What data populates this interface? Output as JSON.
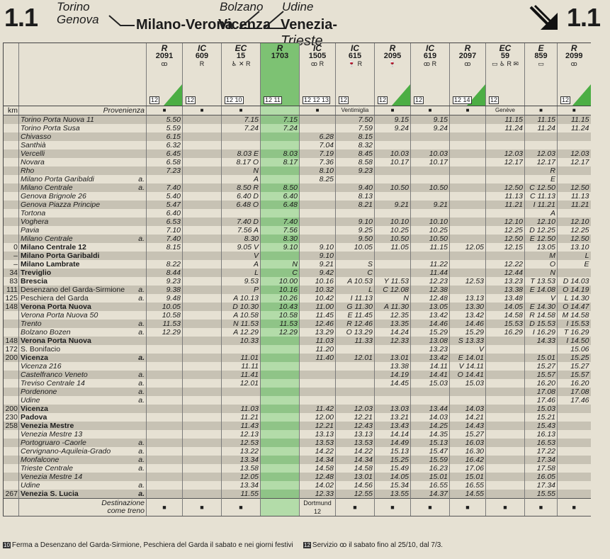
{
  "header": {
    "badge_left": "1.1",
    "badge_right": "1.1",
    "route_torino": "Torino",
    "route_genova": "Genova",
    "route_milano_verona": "Milano-Verona",
    "route_bolzano": "Bolzano",
    "route_vicenza": "Vicenza",
    "route_udine": "Udine",
    "route_venezia": "Venezia-",
    "route_trieste": "Trieste"
  },
  "columns": [
    {
      "cat": "R",
      "num": "2091",
      "svc": "ꝏ",
      "note": "12",
      "green": true
    },
    {
      "cat": "IC",
      "num": "609",
      "svc": "R",
      "note": "12",
      "green": false
    },
    {
      "cat": "EC",
      "num": "15",
      "svc": "♿ ✕ R",
      "note": "12 10",
      "green": false
    },
    {
      "cat": "R",
      "num": "1703",
      "svc": "",
      "note": "12 11",
      "green": true,
      "full": true
    },
    {
      "cat": "IC",
      "num": "1505",
      "svc": "ꝏ R",
      "note": "12 12 13",
      "green": false
    },
    {
      "cat": "IC",
      "num": "615",
      "svc": "🍷 R",
      "note": "12",
      "green": false
    },
    {
      "cat": "R",
      "num": "2095",
      "svc": "🍷",
      "note": "12",
      "green": true
    },
    {
      "cat": "IC",
      "num": "619",
      "svc": "ꝏ R",
      "note": "12",
      "green": false
    },
    {
      "cat": "R",
      "num": "2097",
      "svc": "ꝏ",
      "note": "12 14",
      "green": true
    },
    {
      "cat": "EC",
      "num": "59",
      "svc": "▭ ♿ R ✉",
      "note": "12",
      "green": false
    },
    {
      "cat": "E",
      "num": "859",
      "svc": "▭",
      "note": "",
      "green": false
    },
    {
      "cat": "R",
      "num": "2099",
      "svc": "ꝏ",
      "note": "12",
      "green": true
    }
  ],
  "provenienza": {
    "label": "Provenienza",
    "km": "km",
    "cells": [
      "■",
      "■",
      "■",
      "",
      "■",
      "Ventimiglia",
      "■",
      "■",
      "■",
      "Genève",
      "■",
      "■"
    ]
  },
  "rows": [
    {
      "km": "",
      "st": "Torino Porta Nuova 11",
      "a": "",
      "g": "shade",
      "it": true,
      "c": [
        "5.50",
        "",
        "7.15",
        "7.15",
        "",
        "7.50",
        "9.15",
        "9.15",
        "",
        "11.15",
        "11.15",
        "11.15"
      ]
    },
    {
      "km": "",
      "st": "Torino Porta Susa",
      "a": "",
      "g": "",
      "it": true,
      "c": [
        "5.59",
        "",
        "7.24",
        "7.24",
        "",
        "7.59",
        "9.24",
        "9.24",
        "",
        "11.24",
        "11.24",
        "11.24"
      ]
    },
    {
      "km": "",
      "st": "Chivasso",
      "a": "",
      "g": "shade",
      "it": true,
      "c": [
        "6.15",
        "",
        "",
        "",
        "6.28",
        "8.15",
        "",
        "",
        "",
        "",
        "",
        ""
      ]
    },
    {
      "km": "",
      "st": "Santhià",
      "a": "",
      "g": "",
      "it": true,
      "c": [
        "6.32",
        "",
        "",
        "",
        "7.04",
        "8.32",
        "",
        "",
        "",
        "",
        "",
        ""
      ]
    },
    {
      "km": "",
      "st": "Vercelli",
      "a": "",
      "g": "shade",
      "it": true,
      "c": [
        "6.45",
        "",
        "8.03 E",
        "8.03",
        "7.19",
        "8.45",
        "10.03",
        "10.03",
        "",
        "12.03",
        "12.03",
        "12.03"
      ]
    },
    {
      "km": "",
      "st": "Novara",
      "a": "",
      "g": "",
      "it": true,
      "c": [
        "6.58",
        "",
        "8.17 O",
        "8.17",
        "7.36",
        "8.58",
        "10.17",
        "10.17",
        "",
        "12.17",
        "12.17",
        "12.17"
      ]
    },
    {
      "km": "",
      "st": "Rho",
      "a": "",
      "g": "shade",
      "it": true,
      "c": [
        "7.23",
        "",
        "N",
        "",
        "8.10",
        "9.23",
        "",
        "",
        "",
        "",
        "R",
        ""
      ]
    },
    {
      "km": "",
      "st": "Milano Porta Garibaldi",
      "a": "a.",
      "g": "",
      "it": true,
      "c": [
        "",
        "",
        "A",
        "",
        "8.25",
        "",
        "",
        "",
        "",
        "",
        "E",
        ""
      ]
    },
    {
      "km": "",
      "st": "Milano Centrale",
      "a": "a.",
      "g": "shade",
      "it": true,
      "c": [
        "7.40",
        "",
        "8.50 R",
        "8.50",
        "",
        "9.40",
        "10.50",
        "10.50",
        "",
        "12.50",
        "C 12.50",
        "12.50"
      ]
    },
    {
      "km": "",
      "st": "Genova Brignole 26",
      "a": "",
      "g": "",
      "it": true,
      "c": [
        "5.40",
        "",
        "6.40 D",
        "6.40",
        "",
        "8.13",
        "",
        "",
        "",
        "11.13",
        "C 11.13",
        "11.13"
      ]
    },
    {
      "km": "",
      "st": "Genova Piazza Principe",
      "a": "",
      "g": "shade",
      "it": true,
      "c": [
        "5.47",
        "",
        "6.48 O",
        "6.48",
        "",
        "8.21",
        "9.21",
        "9.21",
        "",
        "11.21",
        "I 11.21",
        "11.21"
      ]
    },
    {
      "km": "",
      "st": "Tortona",
      "a": "",
      "g": "",
      "it": true,
      "c": [
        "6.40",
        "",
        "",
        "",
        "",
        "",
        "",
        "",
        "",
        "",
        "A",
        ""
      ]
    },
    {
      "km": "",
      "st": "Voghera",
      "a": "",
      "g": "shade",
      "it": true,
      "c": [
        "6.53",
        "",
        "7.40 D",
        "7.40",
        "",
        "9.10",
        "10.10",
        "10.10",
        "",
        "12.10",
        "12.10",
        "12.10"
      ]
    },
    {
      "km": "",
      "st": "Pavia",
      "a": "",
      "g": "",
      "it": true,
      "c": [
        "7.10",
        "",
        "7.56 A",
        "7.56",
        "",
        "9.25",
        "10.25",
        "10.25",
        "",
        "12.25",
        "D 12.25",
        "12.25"
      ]
    },
    {
      "km": "",
      "st": "Milano Centrale",
      "a": "a.",
      "g": "shade",
      "it": true,
      "c": [
        "7.40",
        "",
        "8.30",
        "8.30",
        "",
        "9.50",
        "10.50",
        "10.50",
        "",
        "12.50",
        "E 12.50",
        "12.50"
      ]
    },
    {
      "km": "0",
      "st": "Milano Centrale 12",
      "a": "",
      "g": "",
      "bold": true,
      "c": [
        "8.15",
        "",
        "9.05 V",
        "9.10",
        "9.10",
        "10.05",
        "11.05",
        "11.15",
        "12.05",
        "12.15",
        "13.05",
        "13.10"
      ]
    },
    {
      "km": "–",
      "st": "Milano Porta Garibaldi",
      "a": "",
      "g": "shade",
      "bold": true,
      "c": [
        "",
        "",
        "V",
        "",
        "9.10",
        "",
        "",
        "",
        "",
        "",
        "M",
        "L"
      ]
    },
    {
      "km": "–",
      "st": "Milano Lambrate",
      "a": "",
      "g": "",
      "bold": true,
      "c": [
        "8.22",
        "",
        "A",
        "N",
        "9.21",
        "S",
        "",
        "11.22",
        "",
        "12.22",
        "O",
        "E"
      ]
    },
    {
      "km": "34",
      "st": "Treviglio",
      "a": "",
      "g": "shade",
      "bold": true,
      "c": [
        "8.44",
        "",
        "L",
        "C",
        "9.42",
        "C",
        "",
        "11.44",
        "",
        "12.44",
        "N",
        ""
      ]
    },
    {
      "km": "83",
      "st": "Brescia",
      "a": "",
      "g": "",
      "bold": true,
      "c": [
        "9.23",
        "",
        "9.53",
        "10.00",
        "10.16",
        "A 10.53",
        "Y 11.53",
        "12.23",
        "12.53",
        "13.23",
        "T 13.53",
        "D 14.03"
      ]
    },
    {
      "km": "111",
      "st": "Desenzano del Garda-Sirmione",
      "a": "a.",
      "g": "shade",
      "c": [
        "9.38",
        "",
        "P",
        "10.16",
        "10.32",
        "L",
        "C 12.08",
        "12.38",
        "",
        "13.38",
        "E 14.08",
        "O 14.19"
      ]
    },
    {
      "km": "125",
      "st": "Peschiera del Garda",
      "a": "a.",
      "g": "",
      "c": [
        "9.48",
        "",
        "A 10.13",
        "10.26",
        "10.42",
        "I 11.13",
        "N",
        "12.48",
        "13.13",
        "13.48",
        "V",
        "L 14.30"
      ]
    },
    {
      "km": "148",
      "st": "Verona Porta Nuova",
      "a": "",
      "g": "shade",
      "bold": true,
      "c": [
        "10.05",
        "",
        "D 10.30",
        "10.43",
        "11.00",
        "G 11.30",
        "A 11.30",
        "13.05",
        "13.30",
        "14.05",
        "E 14.30",
        "O 14.47"
      ]
    },
    {
      "km": "",
      "st": "Verona Porta Nuova 50",
      "a": "",
      "g": "",
      "it": true,
      "c": [
        "10.58",
        "",
        "A 10.58",
        "10.58",
        "11.45",
        "E 11.45",
        "12.35",
        "13.42",
        "13.42",
        "14.58",
        "R 14.58",
        "M 14.58"
      ]
    },
    {
      "km": "",
      "st": "Trento",
      "a": "a.",
      "g": "shade",
      "it": true,
      "c": [
        "11.53",
        "",
        "N 11.53",
        "11.53",
        "12.46",
        "R 12.46",
        "13.35",
        "14.46",
        "14.46",
        "15.53",
        "D 15.53",
        "I 15.53"
      ]
    },
    {
      "km": "",
      "st": "Bolzano Bozen",
      "a": "a.",
      "g": "",
      "it": true,
      "c": [
        "12.29",
        "",
        "A 12.29",
        "12.29",
        "13.29",
        "O 13.29",
        "14.24",
        "15.29",
        "15.29",
        "16.29",
        "I 16.29",
        "T 16.29"
      ]
    },
    {
      "km": "148",
      "st": "Verona Porta Nuova",
      "a": "",
      "g": "shade",
      "bold": true,
      "c": [
        "",
        "",
        "10.33",
        "",
        "11.03",
        "11.33",
        "12.33",
        "13.08",
        "S 13.33",
        "",
        "14.33",
        "I 14.50"
      ]
    },
    {
      "km": "172",
      "st": "S. Bonifacio",
      "a": "",
      "g": "",
      "c": [
        "",
        "",
        "",
        "",
        "11.20",
        "",
        "",
        "13.23",
        "V",
        "",
        "",
        "15.06"
      ]
    },
    {
      "km": "200",
      "st": "Vicenza",
      "a": "a.",
      "g": "shade",
      "bold": true,
      "c": [
        "",
        "",
        "11.01",
        "",
        "11.40",
        "12.01",
        "13.01",
        "13.42",
        "E 14.01",
        "",
        "15.01",
        "15.25"
      ]
    },
    {
      "km": "",
      "st": "Vicenza 216",
      "a": "",
      "g": "",
      "it": true,
      "c": [
        "",
        "",
        "11.11",
        "",
        "",
        "",
        "13.38",
        "14.11",
        "V 14.11",
        "",
        "15.27",
        "15.27"
      ]
    },
    {
      "km": "",
      "st": "Castelfranco Veneto",
      "a": "a.",
      "g": "shade",
      "it": true,
      "c": [
        "",
        "",
        "11.41",
        "",
        "",
        "",
        "14.19",
        "14.41",
        "O 14.41",
        "",
        "15.57",
        "15.57"
      ]
    },
    {
      "km": "",
      "st": "Treviso Centrale 14",
      "a": "a.",
      "g": "",
      "it": true,
      "c": [
        "",
        "",
        "12.01",
        "",
        "",
        "",
        "14.45",
        "15.03",
        "15.03",
        "",
        "16.20",
        "16.20"
      ]
    },
    {
      "km": "",
      "st": "Pordenone",
      "a": "a.",
      "g": "shade",
      "it": true,
      "c": [
        "",
        "",
        "",
        "",
        "",
        "",
        "",
        "",
        "",
        "",
        "17.08",
        "17.08"
      ]
    },
    {
      "km": "",
      "st": "Udine",
      "a": "a.",
      "g": "",
      "it": true,
      "c": [
        "",
        "",
        "",
        "",
        "",
        "",
        "",
        "",
        "",
        "",
        "17.46",
        "17.46"
      ]
    },
    {
      "km": "200",
      "st": "Vicenza",
      "a": "",
      "g": "shade",
      "bold": true,
      "c": [
        "",
        "",
        "11.03",
        "",
        "11.42",
        "12.03",
        "13.03",
        "13.44",
        "14.03",
        "",
        "15.03",
        ""
      ]
    },
    {
      "km": "230",
      "st": "Padova",
      "a": "",
      "g": "",
      "bold": true,
      "c": [
        "",
        "",
        "11.21",
        "",
        "12.00",
        "12.21",
        "13.21",
        "14.03",
        "14.21",
        "",
        "15.21",
        ""
      ]
    },
    {
      "km": "258",
      "st": "Venezia Mestre",
      "a": "",
      "g": "shade",
      "bold": true,
      "c": [
        "",
        "",
        "11.43",
        "",
        "12.21",
        "12.43",
        "13.43",
        "14.25",
        "14.43",
        "",
        "15.43",
        ""
      ]
    },
    {
      "km": "",
      "st": "Venezia Mestre 13",
      "a": "",
      "g": "",
      "it": true,
      "c": [
        "",
        "",
        "12.13",
        "",
        "13.13",
        "13.13",
        "14.14",
        "14.35",
        "15.27",
        "",
        "16.13",
        ""
      ]
    },
    {
      "km": "",
      "st": "Portogruaro -Caorle",
      "a": "a.",
      "g": "shade",
      "it": true,
      "c": [
        "",
        "",
        "12.53",
        "",
        "13.53",
        "13.53",
        "14.49",
        "15.13",
        "16.03",
        "",
        "16.53",
        ""
      ]
    },
    {
      "km": "",
      "st": "Cervignano-Aquileia-Grado",
      "a": "a.",
      "g": "",
      "it": true,
      "c": [
        "",
        "",
        "13.22",
        "",
        "14.22",
        "14.22",
        "15.13",
        "15.47",
        "16.30",
        "",
        "17.22",
        ""
      ]
    },
    {
      "km": "",
      "st": "Monfalcone",
      "a": "a.",
      "g": "shade",
      "it": true,
      "c": [
        "",
        "",
        "13.34",
        "",
        "14.34",
        "14.34",
        "15.25",
        "15.59",
        "16.42",
        "",
        "17.34",
        ""
      ]
    },
    {
      "km": "",
      "st": "Trieste Centrale",
      "a": "a.",
      "g": "",
      "it": true,
      "c": [
        "",
        "",
        "13.58",
        "",
        "14.58",
        "14.58",
        "15.49",
        "16.23",
        "17.06",
        "",
        "17.58",
        ""
      ]
    },
    {
      "km": "",
      "st": "Venezia Mestre 14",
      "a": "",
      "g": "shade",
      "it": true,
      "c": [
        "",
        "",
        "12.05",
        "",
        "12.48",
        "13.01",
        "14.05",
        "15.01",
        "15.01",
        "",
        "16.05",
        ""
      ]
    },
    {
      "km": "",
      "st": "Udine",
      "a": "a.",
      "g": "",
      "it": true,
      "c": [
        "",
        "",
        "13.34",
        "",
        "14.02",
        "14.56",
        "15.34",
        "16.55",
        "16.55",
        "",
        "17.34",
        ""
      ]
    },
    {
      "km": "267",
      "st": "Venezia S. Lucia",
      "a": "a.",
      "g": "shade",
      "bold": true,
      "c": [
        "",
        "",
        "11.55",
        "",
        "12.33",
        "12.55",
        "13.55",
        "14.37",
        "14.55",
        "",
        "15.55",
        ""
      ]
    }
  ],
  "destinazione": {
    "label": "Destinazione",
    "label2": "come treno",
    "cells": [
      "■",
      "■",
      "■",
      "",
      "Dortmund 12",
      "■",
      "■",
      "■",
      "■",
      "■",
      "■",
      "■"
    ]
  },
  "footer": {
    "note10_num": "10",
    "note10": "Ferma a Desenzano del Garda-Sirmione, Peschiera del Garda il sabato e nei giorni festivi",
    "note12_num": "12",
    "note12": "Servizio ꝏ il sabato fino al 25/10, dal 7/3."
  }
}
